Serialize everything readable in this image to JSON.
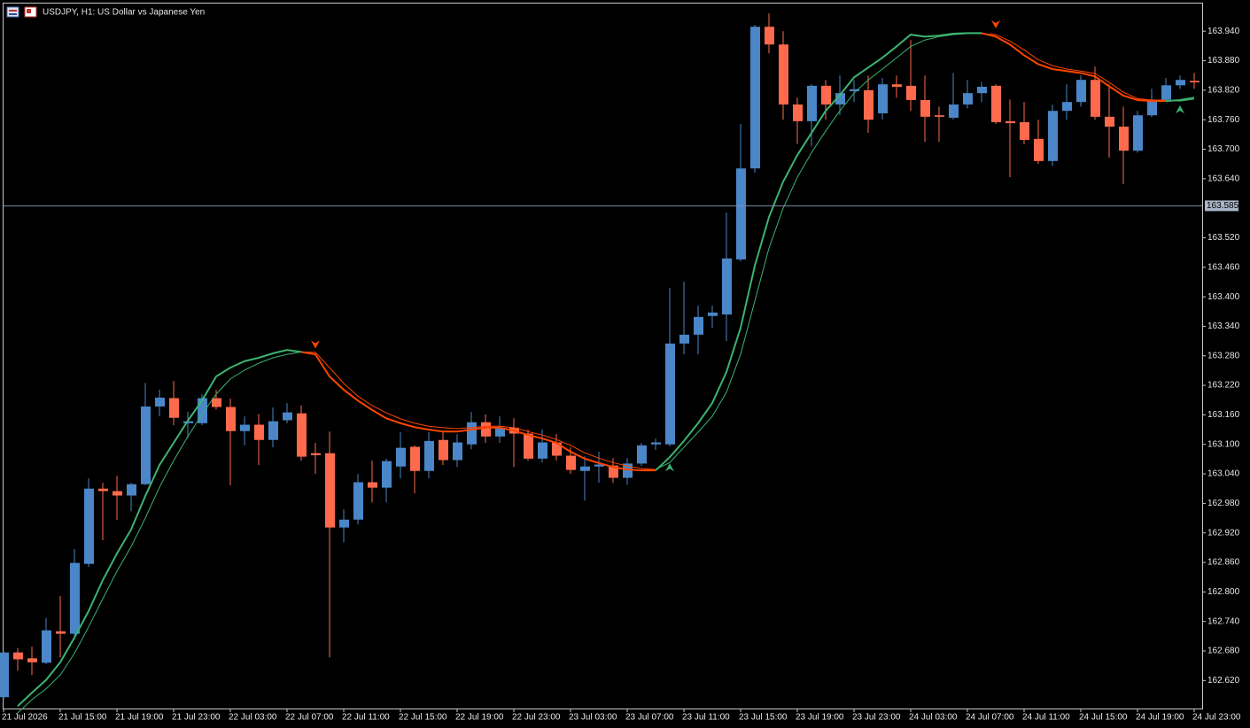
{
  "chart_data": {
    "type": "candlestick",
    "title": "USDJPY, H1:  US Dollar vs Japanese Yen",
    "categories": [
      "21 Jul 2026",
      null,
      null,
      null,
      "21 Jul 15:00",
      null,
      null,
      null,
      "21 Jul 19:00",
      null,
      null,
      null,
      "21 Jul 23:00",
      null,
      null,
      null,
      "22 Jul 03:00",
      null,
      null,
      null,
      "22 Jul 07:00",
      null,
      null,
      null,
      "22 Jul 11:00",
      null,
      null,
      null,
      "22 Jul 15:00",
      null,
      null,
      null,
      "22 Jul 19:00",
      null,
      null,
      null,
      "22 Jul 23:00",
      null,
      null,
      null,
      "23 Jul 03:00",
      null,
      null,
      null,
      "23 Jul 07:00",
      null,
      null,
      null,
      "23 Jul 11:00",
      null,
      null,
      null,
      "23 Jul 15:00",
      null,
      null,
      null,
      "23 Jul 19:00",
      null,
      null,
      null,
      "23 Jul 23:00",
      null,
      null,
      null,
      "24 Jul 03:00",
      null,
      null,
      null,
      "24 Jul 07:00",
      null,
      null,
      null,
      "24 Jul 11:00",
      null,
      null,
      null,
      "24 Jul 15:00",
      null,
      null,
      null,
      "24 Jul 19:00",
      null,
      null,
      null,
      "24 Jul 23:00"
    ],
    "open": [
      162.586,
      162.677,
      162.665,
      162.656,
      162.72,
      162.715,
      162.857,
      163.01,
      163.005,
      162.996,
      163.019,
      163.177,
      163.194,
      163.143,
      163.143,
      163.194,
      163.176,
      163.127,
      163.14,
      163.109,
      163.149,
      163.163,
      163.082,
      163.082,
      162.931,
      162.947,
      163.023,
      163.012,
      163.055,
      163.095,
      163.046,
      163.109,
      163.068,
      163.1,
      163.145,
      163.116,
      163.134,
      163.122,
      163.071,
      163.104,
      163.077,
      163.046,
      163.055,
      163.057,
      163.032,
      163.061,
      163.1,
      163.1,
      163.305,
      163.323,
      163.361,
      163.364,
      163.476,
      163.661,
      163.949,
      163.913,
      163.791,
      163.757,
      163.829,
      163.791,
      163.818,
      163.82,
      163.773,
      163.832,
      163.829,
      163.8,
      163.769,
      163.764,
      163.791,
      163.814,
      163.829,
      163.757,
      163.755,
      163.721,
      163.676,
      163.778,
      163.796,
      163.841,
      163.766,
      163.746,
      163.697,
      163.769,
      163.801,
      163.83,
      163.839
    ],
    "high": [
      162.68,
      162.686,
      162.689,
      162.747,
      162.792,
      162.887,
      163.031,
      163.022,
      163.036,
      163.022,
      163.225,
      163.211,
      163.229,
      163.166,
      163.202,
      163.211,
      163.193,
      163.157,
      163.162,
      163.175,
      163.184,
      163.179,
      163.103,
      163.126,
      162.968,
      163.04,
      163.067,
      163.071,
      163.125,
      163.098,
      163.125,
      163.125,
      163.121,
      163.166,
      163.161,
      163.157,
      163.153,
      163.13,
      163.13,
      163.121,
      163.094,
      163.076,
      163.085,
      163.072,
      163.072,
      163.103,
      163.112,
      163.418,
      163.431,
      163.382,
      163.382,
      163.571,
      163.751,
      163.953,
      163.976,
      163.94,
      163.805,
      163.832,
      163.841,
      163.85,
      163.841,
      163.85,
      163.845,
      163.85,
      163.922,
      163.85,
      163.787,
      163.855,
      163.841,
      163.837,
      163.832,
      163.801,
      163.796,
      163.76,
      163.791,
      163.832,
      163.85,
      163.868,
      163.832,
      163.787,
      163.778,
      163.823,
      163.845,
      163.85,
      163.855
    ],
    "low": [
      162.58,
      162.64,
      162.631,
      162.653,
      162.667,
      162.711,
      162.851,
      162.905,
      162.946,
      162.964,
      163.017,
      163.157,
      163.139,
      163.112,
      163.139,
      163.171,
      163.017,
      163.098,
      163.058,
      163.094,
      163.143,
      163.067,
      163.04,
      162.667,
      162.901,
      162.937,
      162.982,
      162.982,
      163.031,
      163.0,
      163.031,
      163.058,
      163.054,
      163.09,
      163.103,
      163.103,
      163.054,
      163.067,
      163.063,
      163.067,
      163.04,
      162.986,
      163.022,
      163.022,
      163.018,
      163.056,
      163.089,
      163.096,
      163.283,
      163.283,
      163.337,
      163.31,
      163.472,
      163.652,
      163.895,
      163.76,
      163.711,
      163.706,
      163.76,
      163.769,
      163.796,
      163.733,
      163.76,
      163.805,
      163.778,
      163.715,
      163.715,
      163.76,
      163.783,
      163.796,
      163.751,
      163.643,
      163.71,
      163.67,
      163.666,
      163.76,
      163.787,
      163.76,
      163.683,
      163.629,
      163.693,
      163.765,
      163.796,
      163.823,
      163.823
    ],
    "close": [
      162.677,
      162.663,
      162.657,
      162.722,
      162.715,
      162.859,
      163.01,
      163.005,
      162.996,
      163.019,
      163.177,
      163.195,
      163.154,
      163.147,
      163.194,
      163.176,
      163.127,
      163.14,
      163.109,
      163.147,
      163.165,
      163.075,
      163.078,
      162.931,
      162.947,
      163.023,
      163.012,
      163.066,
      163.093,
      163.046,
      163.107,
      163.068,
      163.104,
      163.145,
      163.116,
      163.134,
      163.122,
      163.071,
      163.104,
      163.077,
      163.048,
      163.055,
      163.059,
      163.032,
      163.061,
      163.098,
      163.104,
      163.305,
      163.323,
      163.359,
      163.368,
      163.478,
      163.661,
      163.949,
      163.913,
      163.791,
      163.757,
      163.829,
      163.791,
      163.814,
      163.822,
      163.76,
      163.832,
      163.827,
      163.8,
      163.766,
      163.766,
      163.791,
      163.814,
      163.827,
      163.755,
      163.753,
      163.719,
      163.676,
      163.778,
      163.796,
      163.841,
      163.766,
      163.746,
      163.697,
      163.769,
      163.801,
      163.83,
      163.841,
      163.836
    ],
    "up_color": "#4a86c8",
    "down_color": "#ff6a4d",
    "trend_colors": {
      "up": "#3cb371",
      "down": "#ff4500"
    },
    "lines": [
      {
        "width": 2,
        "values": [
          null,
          162.568,
          162.595,
          162.621,
          162.657,
          162.707,
          162.761,
          162.824,
          162.878,
          162.927,
          162.995,
          163.058,
          163.103,
          163.148,
          163.189,
          163.238,
          163.256,
          163.269,
          163.276,
          163.285,
          163.292,
          163.288,
          163.283,
          163.238,
          163.211,
          163.189,
          163.17,
          163.153,
          163.143,
          163.135,
          163.13,
          163.126,
          163.126,
          163.13,
          163.134,
          163.134,
          163.128,
          163.119,
          163.112,
          163.103,
          163.085,
          163.071,
          163.062,
          163.054,
          163.049,
          163.047,
          163.047,
          163.074,
          163.107,
          163.143,
          163.184,
          163.247,
          163.337,
          163.463,
          163.562,
          163.634,
          163.688,
          163.733,
          163.778,
          163.81,
          163.846,
          163.866,
          163.886,
          163.909,
          163.933,
          163.929,
          163.931,
          163.935,
          163.936,
          163.936,
          163.929,
          163.913,
          163.891,
          163.873,
          163.863,
          163.859,
          163.855,
          163.848,
          163.828,
          163.809,
          163.8,
          163.798,
          163.798,
          163.8,
          163.805
        ]
      },
      {
        "width": 1,
        "values": [
          null,
          162.554,
          162.581,
          162.603,
          162.631,
          162.675,
          162.729,
          162.786,
          162.842,
          162.892,
          162.95,
          163.013,
          163.067,
          163.116,
          163.161,
          163.202,
          163.233,
          163.251,
          163.265,
          163.276,
          163.283,
          163.288,
          163.287,
          163.256,
          163.224,
          163.198,
          163.179,
          163.164,
          163.152,
          163.143,
          163.137,
          163.134,
          163.132,
          163.134,
          163.137,
          163.137,
          163.134,
          163.126,
          163.119,
          163.11,
          163.098,
          163.083,
          163.072,
          163.063,
          163.056,
          163.051,
          163.049,
          163.063,
          163.094,
          163.125,
          163.157,
          163.206,
          163.283,
          163.391,
          163.499,
          163.58,
          163.643,
          163.693,
          163.737,
          163.778,
          163.814,
          163.841,
          163.863,
          163.886,
          163.909,
          163.922,
          163.929,
          163.933,
          163.935,
          163.935,
          163.933,
          163.92,
          163.902,
          163.882,
          163.87,
          163.863,
          163.859,
          163.854,
          163.836,
          163.816,
          163.803,
          163.8,
          163.8,
          163.798,
          163.802
        ]
      }
    ],
    "signals": [
      {
        "at": 22,
        "value": 163.302,
        "direction": "down"
      },
      {
        "at": 47,
        "value": 163.054,
        "direction": "up"
      },
      {
        "at": 70,
        "value": 163.953,
        "direction": "down"
      },
      {
        "at": 83,
        "value": 163.782,
        "direction": "up"
      }
    ],
    "current_price": {
      "value": 163.585,
      "label": "163.585"
    },
    "ylim": [
      162.563,
      163.998
    ],
    "yticks": [
      {
        "value": 163.94,
        "label": "163.940"
      },
      {
        "value": 163.88,
        "label": "163.880"
      },
      {
        "value": 163.82,
        "label": "163.820"
      },
      {
        "value": 163.76,
        "label": "163.760"
      },
      {
        "value": 163.7,
        "label": "163.700"
      },
      {
        "value": 163.64,
        "label": "163.640"
      },
      {
        "value": 163.52,
        "label": "163.520"
      },
      {
        "value": 163.46,
        "label": "163.460"
      },
      {
        "value": 163.4,
        "label": "163.400"
      },
      {
        "value": 163.34,
        "label": "163.340"
      },
      {
        "value": 163.28,
        "label": "163.280"
      },
      {
        "value": 163.22,
        "label": "163.220"
      },
      {
        "value": 163.16,
        "label": "163.160"
      },
      {
        "value": 163.1,
        "label": "163.100"
      },
      {
        "value": 163.04,
        "label": "163.040"
      },
      {
        "value": 162.98,
        "label": "162.980"
      },
      {
        "value": 162.92,
        "label": "162.920"
      },
      {
        "value": 162.86,
        "label": "162.860"
      },
      {
        "value": 162.8,
        "label": "162.800"
      },
      {
        "value": 162.74,
        "label": "162.740"
      },
      {
        "value": 162.68,
        "label": "162.680"
      },
      {
        "value": 162.62,
        "label": "162.620"
      }
    ]
  }
}
